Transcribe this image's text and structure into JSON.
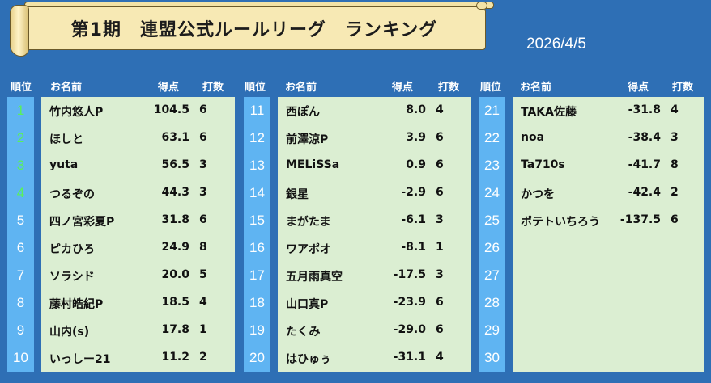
{
  "header": {
    "title": "第1期　連盟公式ルールリーグ　ランキング",
    "date": "2026/4/5"
  },
  "columns": {
    "rank": "順位",
    "name": "お名前",
    "score": "得点",
    "games": "打数"
  },
  "groups": [
    {
      "ranks": [
        "1",
        "2",
        "3",
        "4",
        "5",
        "6",
        "7",
        "8",
        "9",
        "10"
      ],
      "players": [
        {
          "name": "竹内悠人P",
          "score": "104.5",
          "games": "6"
        },
        {
          "name": "ほしと",
          "score": "63.1",
          "games": "6"
        },
        {
          "name": "yuta",
          "score": "56.5",
          "games": "3"
        },
        {
          "name": "つるぞの",
          "score": "44.3",
          "games": "3"
        },
        {
          "name": "四ノ宮彩夏P",
          "score": "31.8",
          "games": "6"
        },
        {
          "name": "ピカひろ",
          "score": "24.9",
          "games": "8"
        },
        {
          "name": "ソラシド",
          "score": "20.0",
          "games": "5"
        },
        {
          "name": "藤村皓紀P",
          "score": "18.5",
          "games": "4"
        },
        {
          "name": "山内(s)",
          "score": "17.8",
          "games": "1"
        },
        {
          "name": "いっしー21",
          "score": "11.2",
          "games": "2"
        }
      ]
    },
    {
      "ranks": [
        "11",
        "12",
        "13",
        "14",
        "15",
        "16",
        "17",
        "18",
        "19",
        "20"
      ],
      "players": [
        {
          "name": "西ぽん",
          "score": "8.0",
          "games": "4"
        },
        {
          "name": "前澤涼P",
          "score": "3.9",
          "games": "6"
        },
        {
          "name": "MELiSSa",
          "score": "0.9",
          "games": "6"
        },
        {
          "name": "銀星",
          "score": "-2.9",
          "games": "6"
        },
        {
          "name": "まがたま",
          "score": "-6.1",
          "games": "3"
        },
        {
          "name": "ワアポオ",
          "score": "-8.1",
          "games": "1"
        },
        {
          "name": "五月雨真空",
          "score": "-17.5",
          "games": "3"
        },
        {
          "name": "山口真P",
          "score": "-23.9",
          "games": "6"
        },
        {
          "name": "たくみ",
          "score": "-29.0",
          "games": "6"
        },
        {
          "name": "はひゅぅ",
          "score": "-31.1",
          "games": "4"
        }
      ]
    },
    {
      "ranks": [
        "21",
        "22",
        "23",
        "24",
        "25",
        "26",
        "27",
        "28",
        "29",
        "30"
      ],
      "players": [
        {
          "name": "TAKA佐藤",
          "score": "-31.8",
          "games": "4"
        },
        {
          "name": "noa",
          "score": "-38.4",
          "games": "3"
        },
        {
          "name": "Ta710s",
          "score": "-41.7",
          "games": "8"
        },
        {
          "name": "かつを",
          "score": "-42.4",
          "games": "2"
        },
        {
          "name": "ポテトいちろう",
          "score": "-137.5",
          "games": "6"
        }
      ]
    }
  ],
  "colors": {
    "background": "#2e6fb5",
    "rank_column": "#5fb4f2",
    "panel": "#dbeed2",
    "top_rank": "#59f05c",
    "banner": "#f7e9b4"
  }
}
